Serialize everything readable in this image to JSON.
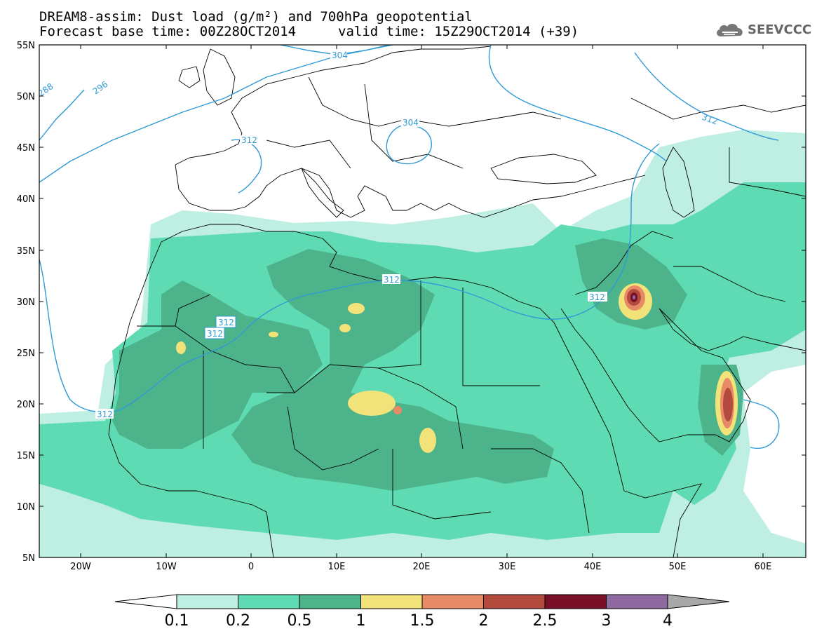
{
  "title": {
    "line1": "DREAM8-assim: Dust load (g/m²) and 700hPa geopotential",
    "line2_left": "Forecast base time: 00Z28OCT2014",
    "line2_right": "valid time: 15Z29OCT2014 (+39)"
  },
  "logo": {
    "text": "SEEVCCC",
    "icon": "cloud-icon"
  },
  "axes": {
    "lat_labels": [
      "55N",
      "50N",
      "45N",
      "40N",
      "35N",
      "30N",
      "25N",
      "20N",
      "15N",
      "10N",
      "5N"
    ],
    "lon_labels": [
      "20W",
      "10W",
      "0",
      "10E",
      "20E",
      "30E",
      "40E",
      "50E",
      "60E"
    ]
  },
  "contours": {
    "labels": [
      "304",
      "288",
      "296",
      "312",
      "304",
      "312",
      "312",
      "312",
      "312",
      "312",
      "312"
    ]
  },
  "colorbar": {
    "ticks": [
      "0.1",
      "0.2",
      "0.5",
      "1",
      "1.5",
      "2",
      "2.5",
      "3",
      "4"
    ],
    "colors": [
      "#bfeee3",
      "#5fdbb3",
      "#4db38b",
      "#f2e27a",
      "#e88a66",
      "#b24a3e",
      "#7a1028",
      "#8e6aa0"
    ],
    "under_color": "#ffffff",
    "over_color": "#a8a8a8"
  },
  "dust_colors": {
    "light": "#bfeee3",
    "medium": "#5fdbb3",
    "dark": "#4db38b",
    "yellow": "#f2e27a",
    "orange": "#e88a66",
    "red": "#b24a3e",
    "maroon": "#7a1028",
    "purple": "#8e6aa0"
  },
  "contour_color": "#2f9ad6"
}
